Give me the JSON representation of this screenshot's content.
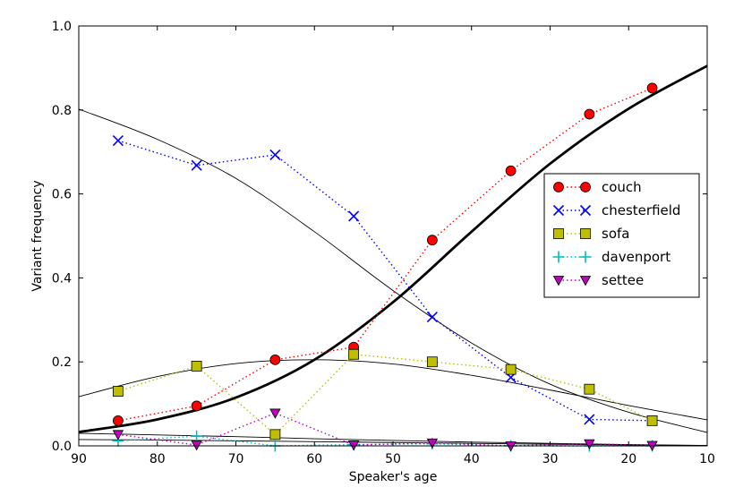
{
  "chart_data": {
    "type": "line",
    "title": "",
    "xlabel": "Speaker's age",
    "ylabel": "Variant frequency",
    "xlim": [
      90,
      10
    ],
    "ylim": [
      0.0,
      1.0
    ],
    "x_ticks": [
      90,
      80,
      70,
      60,
      50,
      40,
      30,
      20,
      10
    ],
    "y_ticks": [
      0.0,
      0.2,
      0.4,
      0.6,
      0.8,
      1.0
    ],
    "x_tick_labels": [
      "90",
      "80",
      "70",
      "60",
      "50",
      "40",
      "30",
      "20",
      "10"
    ],
    "y_tick_labels": [
      "0.0",
      "0.2",
      "0.4",
      "0.6",
      "0.8",
      "1.0"
    ],
    "legend_position": "center-right",
    "series": [
      {
        "name": "couch",
        "color": "#ff0000",
        "marker": "circle",
        "x": [
          85,
          75,
          65,
          55,
          45,
          35,
          25,
          17
        ],
        "y": [
          0.06,
          0.095,
          0.205,
          0.235,
          0.49,
          0.655,
          0.79,
          0.852
        ]
      },
      {
        "name": "chesterfield",
        "color": "#0000ff",
        "marker": "x",
        "x": [
          85,
          75,
          65,
          55,
          45,
          35,
          25,
          17
        ],
        "y": [
          0.727,
          0.668,
          0.693,
          0.547,
          0.307,
          0.163,
          0.063,
          0.06
        ]
      },
      {
        "name": "sofa",
        "color": "#bfbf00",
        "marker": "square",
        "x": [
          85,
          75,
          65,
          55,
          45,
          35,
          25,
          17
        ],
        "y": [
          0.13,
          0.19,
          0.027,
          0.218,
          0.2,
          0.182,
          0.135,
          0.06
        ]
      },
      {
        "name": "davenport",
        "color": "#00bfbf",
        "marker": "plus",
        "x": [
          85,
          75,
          65,
          55,
          45,
          35,
          25,
          17
        ],
        "y": [
          0.012,
          0.023,
          0.0,
          0.003,
          0.005,
          0.0,
          0.0,
          0.0
        ]
      },
      {
        "name": "settee",
        "color": "#bf00bf",
        "marker": "triangle-down",
        "x": [
          85,
          75,
          65,
          55,
          45,
          35,
          25,
          17
        ],
        "y": [
          0.027,
          0.002,
          0.078,
          0.002,
          0.007,
          0.0,
          0.005,
          0.001
        ]
      }
    ],
    "fitted_curves": [
      {
        "name": "couch fit",
        "weight": "bold",
        "x": [
          90,
          80,
          70,
          60,
          50,
          40,
          30,
          20,
          10
        ],
        "y": [
          0.033,
          0.063,
          0.115,
          0.205,
          0.342,
          0.51,
          0.672,
          0.803,
          0.905
        ]
      },
      {
        "name": "chesterfield fit",
        "weight": "thin",
        "x": [
          90,
          80,
          70,
          60,
          50,
          40,
          30,
          20,
          10
        ],
        "y": [
          0.802,
          0.73,
          0.637,
          0.51,
          0.37,
          0.245,
          0.147,
          0.08,
          0.032
        ]
      },
      {
        "name": "sofa fit",
        "weight": "thin",
        "x": [
          90,
          80,
          70,
          60,
          50,
          40,
          30,
          20,
          10
        ],
        "y": [
          0.117,
          0.165,
          0.196,
          0.205,
          0.195,
          0.168,
          0.133,
          0.096,
          0.062
        ]
      },
      {
        "name": "davenport fit",
        "weight": "thin",
        "x": [
          90,
          80,
          70,
          60,
          50,
          40,
          30,
          20,
          10
        ],
        "y": [
          0.015,
          0.014,
          0.012,
          0.01,
          0.008,
          0.006,
          0.004,
          0.002,
          0.001
        ]
      },
      {
        "name": "settee fit",
        "weight": "thin",
        "x": [
          90,
          80,
          70,
          60,
          50,
          40,
          30,
          20,
          10
        ],
        "y": [
          0.03,
          0.026,
          0.022,
          0.017,
          0.013,
          0.009,
          0.006,
          0.003,
          0.001
        ]
      }
    ]
  }
}
